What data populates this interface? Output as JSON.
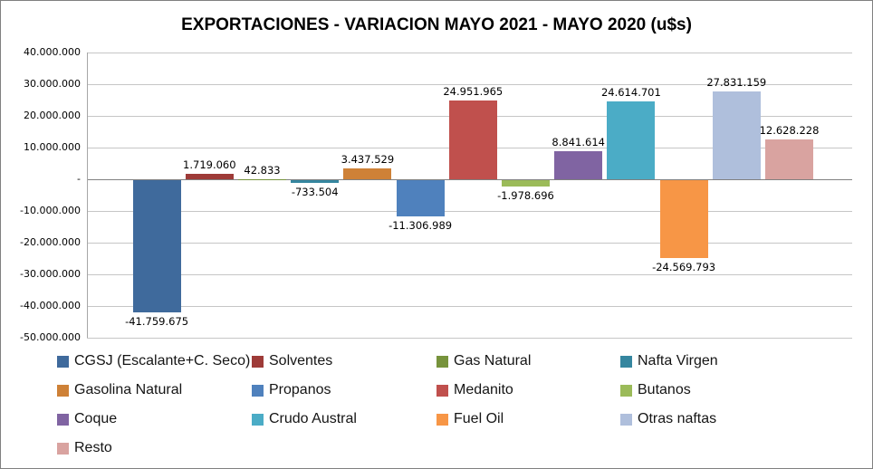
{
  "window": {
    "background": "#FFFFFF",
    "border_color": "#808080"
  },
  "chart_data": {
    "type": "bar",
    "title": "EXPORTACIONES - VARIACION MAYO 2021 - MAYO 2020 (u$s)",
    "xlabel": "",
    "ylabel": "",
    "ylim": [
      -50000000,
      40000000
    ],
    "gridline_step": 10000000,
    "grid": true,
    "legend_position": "bottom",
    "y_ticks": [
      {
        "value": 40000000,
        "label": "40.000.000"
      },
      {
        "value": 30000000,
        "label": "30.000.000"
      },
      {
        "value": 20000000,
        "label": "20.000.000"
      },
      {
        "value": 10000000,
        "label": "10.000.000"
      },
      {
        "value": 0,
        "label": "-"
      },
      {
        "value": -10000000,
        "label": "-10.000.000"
      },
      {
        "value": -20000000,
        "label": "-20.000.000"
      },
      {
        "value": -30000000,
        "label": "-30.000.000"
      },
      {
        "value": -40000000,
        "label": "-40.000.000"
      },
      {
        "value": -50000000,
        "label": "-50.000.000"
      }
    ],
    "series": [
      {
        "name": "CGSJ (Escalante+C. Seco)",
        "value": -41759675,
        "label": "-41.759.675",
        "color": "#3F6A9C"
      },
      {
        "name": "Solventes",
        "value": 1719060,
        "label": "1.719.060",
        "color": "#9E3B38"
      },
      {
        "name": "Gas Natural",
        "value": 42833,
        "label": "42.833",
        "color": "#77933C"
      },
      {
        "name": "Nafta Virgen",
        "value": -733504,
        "label": "-733.504",
        "color": "#35869F"
      },
      {
        "name": "Gasolina Natural",
        "value": 3437529,
        "label": "3.437.529",
        "color": "#CE8137"
      },
      {
        "name": "Propanos",
        "value": -11306989,
        "label": "-11.306.989",
        "color": "#4F81BD"
      },
      {
        "name": "Medanito",
        "value": 24951965,
        "label": "24.951.965",
        "color": "#C0504D"
      },
      {
        "name": "Butanos",
        "value": -1978696,
        "label": "-1.978.696",
        "color": "#9BBB59"
      },
      {
        "name": "Coque",
        "value": 8841614,
        "label": "8.841.614",
        "color": "#8064A2"
      },
      {
        "name": "Crudo Austral",
        "value": 24614701,
        "label": "24.614.701",
        "color": "#4BACC6"
      },
      {
        "name": "Fuel Oil",
        "value": -24569793,
        "label": "-24.569.793",
        "color": "#F79646"
      },
      {
        "name": "Otras naftas",
        "value": 27831159,
        "label": "27.831.159",
        "color": "#AFBFDC"
      },
      {
        "name": "Resto",
        "value": 12628228,
        "label": "12.628.228",
        "color": "#D9A3A0"
      }
    ],
    "colors": {
      "gridline": "#C6C6C6",
      "zero_axis": "#808080",
      "text": "#000000"
    }
  }
}
